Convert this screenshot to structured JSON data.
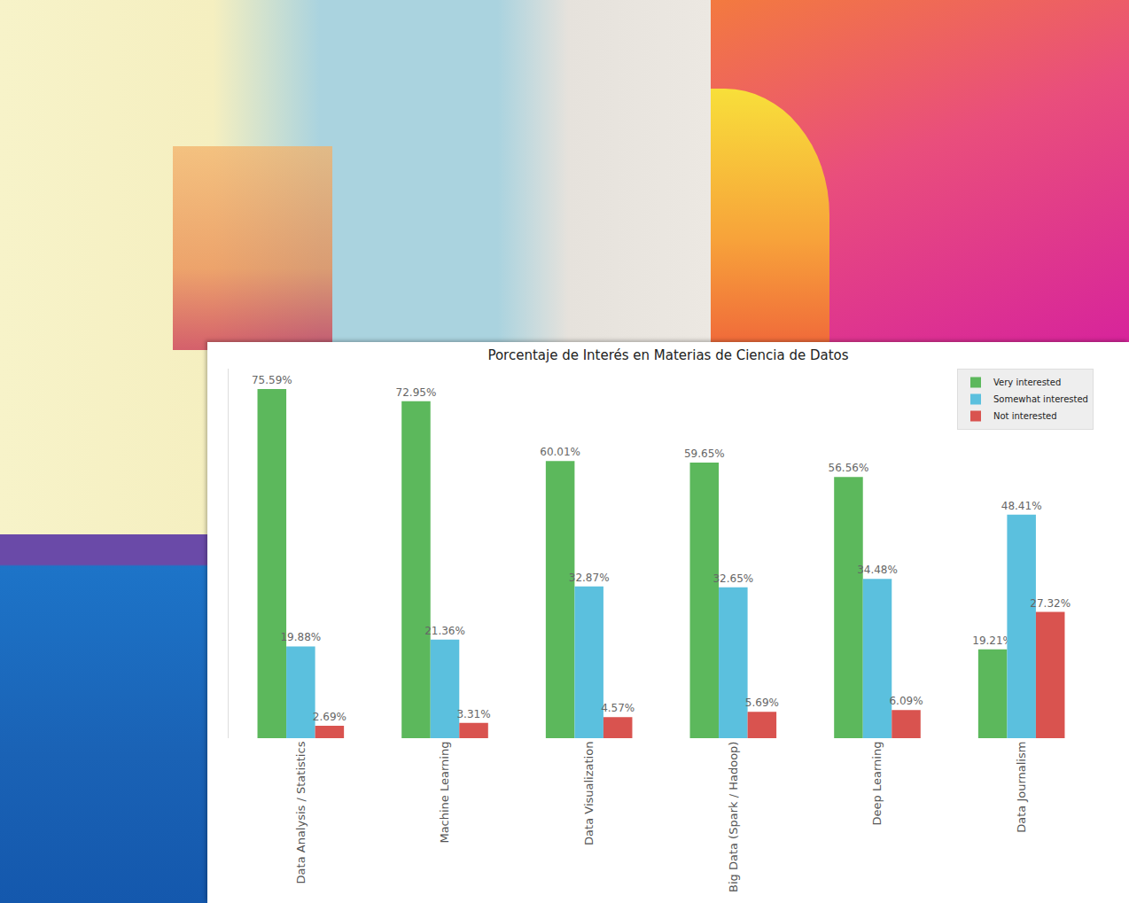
{
  "chart_data": {
    "type": "bar",
    "title": "Porcentaje de Interés en Materias de Ciencia de Datos",
    "categories": [
      "Data Analysis / Statistics",
      "Machine Learning",
      "Data Visualization",
      "Big Data (Spark / Hadoop)",
      "Deep Learning",
      "Data Journalism"
    ],
    "series": [
      {
        "name": "Very interested",
        "color": "#5cb85c",
        "values": [
          75.59,
          72.95,
          60.01,
          59.65,
          56.56,
          19.21
        ],
        "value_labels": [
          "75.59%",
          "72.95%",
          "60.01%",
          "59.65%",
          "56.56%",
          "19.21%"
        ]
      },
      {
        "name": "Somewhat interested",
        "color": "#5bc0de",
        "values": [
          19.88,
          21.36,
          32.87,
          32.65,
          34.48,
          48.41
        ],
        "value_labels": [
          "19.88%",
          "21.36%",
          "32.87%",
          "32.65%",
          "34.48%",
          "48.41%"
        ]
      },
      {
        "name": "Not interested",
        "color": "#d9534f",
        "values": [
          2.69,
          3.31,
          4.57,
          5.69,
          6.09,
          27.32
        ],
        "value_labels": [
          "2.69%",
          "3.31%",
          "4.57%",
          "5.69%",
          "6.09%",
          "27.32%"
        ]
      }
    ],
    "ylim": [
      0,
      80
    ],
    "grid": false,
    "legend": "upper right",
    "data_labels": true,
    "tick_labels": "x"
  }
}
